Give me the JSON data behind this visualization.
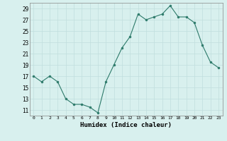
{
  "x": [
    0,
    1,
    2,
    3,
    4,
    5,
    6,
    7,
    8,
    9,
    10,
    11,
    12,
    13,
    14,
    15,
    16,
    17,
    18,
    19,
    20,
    21,
    22,
    23
  ],
  "y": [
    17,
    16,
    17,
    16,
    13,
    12,
    12,
    11.5,
    10.5,
    16,
    19,
    22,
    24,
    28,
    27,
    27.5,
    28,
    29.5,
    27.5,
    27.5,
    26.5,
    22.5,
    19.5,
    18.5
  ],
  "xlabel": "Humidex (Indice chaleur)",
  "xlim": [
    -0.5,
    23.5
  ],
  "ylim": [
    10,
    30
  ],
  "yticks": [
    11,
    13,
    15,
    17,
    19,
    21,
    23,
    25,
    27,
    29
  ],
  "xtick_labels": [
    "0",
    "1",
    "2",
    "3",
    "4",
    "5",
    "6",
    "7",
    "8",
    "9",
    "10",
    "11",
    "12",
    "13",
    "14",
    "15",
    "16",
    "17",
    "18",
    "19",
    "20",
    "21",
    "22",
    "23"
  ],
  "line_color": "#2d7a6a",
  "marker_color": "#2d7a6a",
  "bg_color": "#d8f0ee",
  "grid_color": "#c0dedd"
}
